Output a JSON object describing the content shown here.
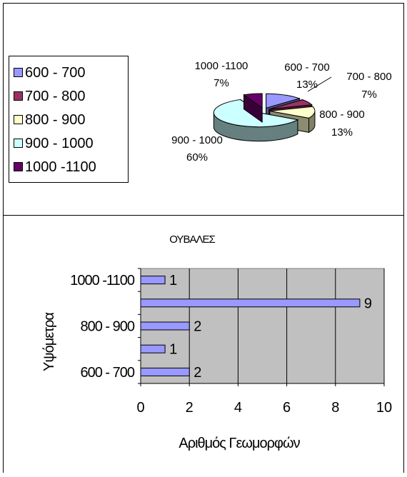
{
  "chart_data": [
    {
      "type": "pie",
      "title": "",
      "categories": [
        "600 - 700",
        "700 - 800",
        "800 - 900",
        "900 - 1000",
        "1000 -1100"
      ],
      "values": [
        2,
        1,
        2,
        9,
        1
      ],
      "percent_labels": [
        "13%",
        "7%",
        "13%",
        "60%",
        "7%"
      ],
      "colors": [
        "#9999ff",
        "#993366",
        "#ffffcc",
        "#ccffff",
        "#660066"
      ],
      "style": "3d-exploded",
      "legend": "left"
    },
    {
      "type": "bar",
      "orientation": "horizontal",
      "title": "ΟΥΒΑΛΕΣ",
      "categories": [
        "600 - 700",
        "700 - 800",
        "800 - 900",
        "900 - 1000",
        "1000 -1100"
      ],
      "tick_labels": [
        "600 - 700",
        "",
        "800 - 900",
        "",
        "1000 -1100"
      ],
      "values": [
        2,
        1,
        2,
        9,
        1
      ],
      "xlabel": "Αριθμός Γεωμορφών",
      "ylabel": "Υψόμετρα",
      "xlim": [
        0,
        10
      ],
      "xticks": [
        0,
        2,
        4,
        6,
        8,
        10
      ],
      "grid": true,
      "plot_background": "#c0c0c0",
      "bar_color": "#9999ff"
    }
  ]
}
